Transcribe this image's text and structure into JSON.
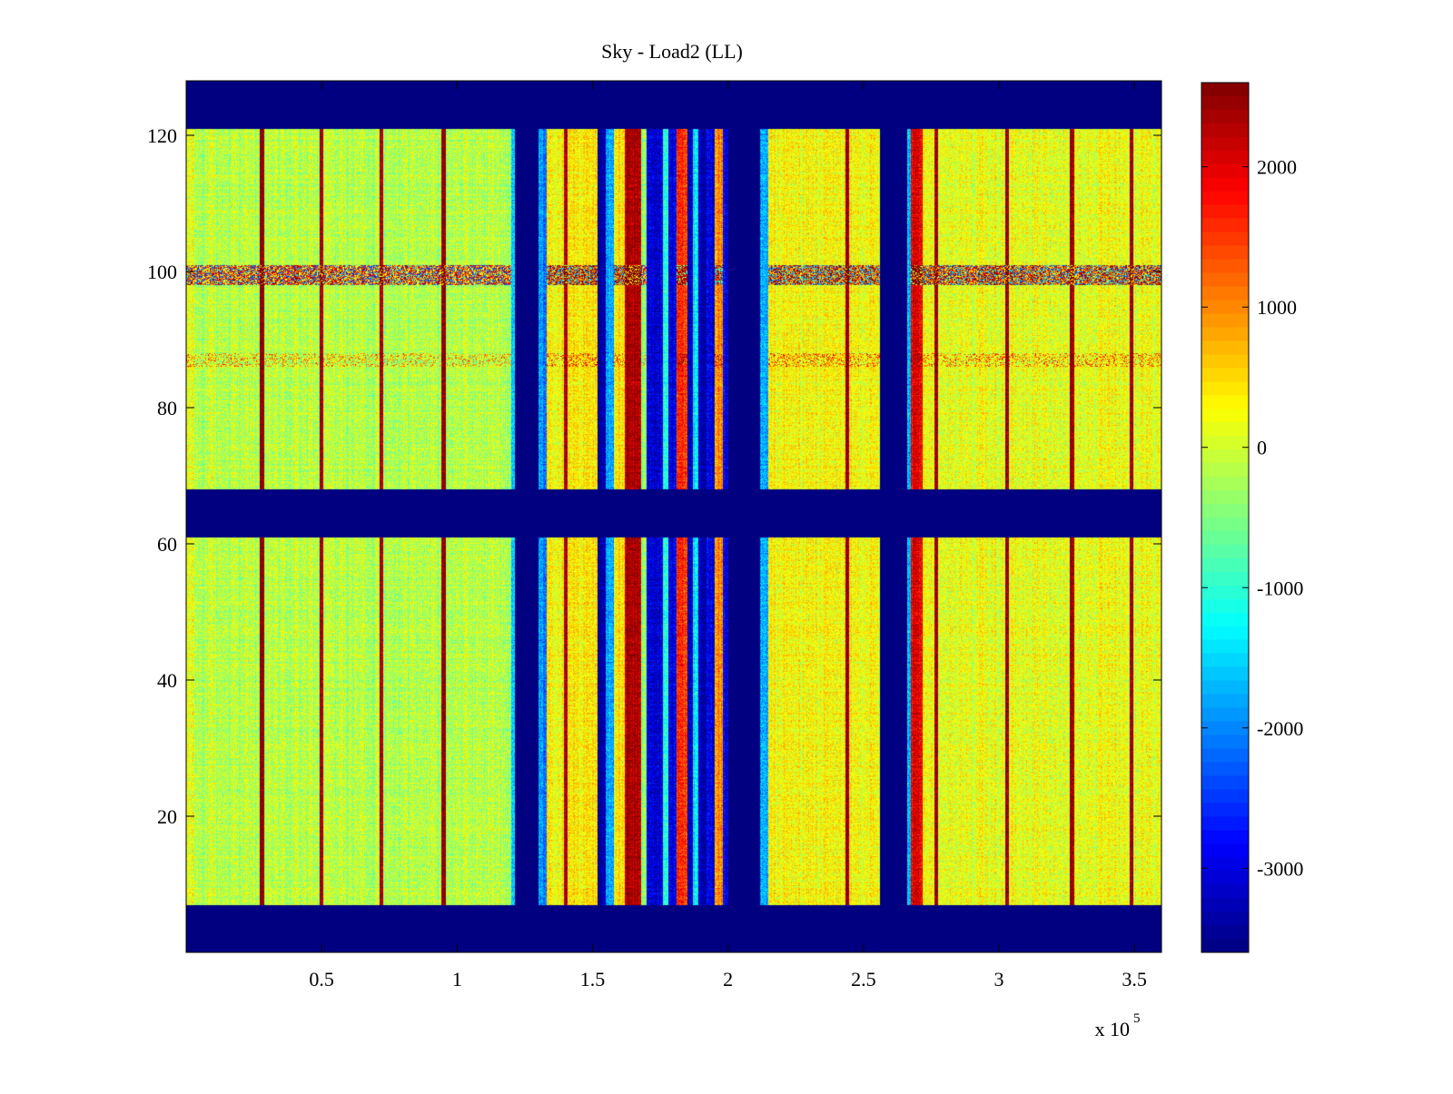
{
  "chart_data": {
    "type": "heatmap",
    "title": "Sky - Load2 (LL)",
    "xlabel": "",
    "ylabel": "",
    "x_exponent_label": "x 10",
    "x_exponent": "5",
    "xlim": [
      0,
      360000
    ],
    "ylim": [
      0,
      128
    ],
    "x_ticks": [
      {
        "value": 50000,
        "label": "0.5"
      },
      {
        "value": 100000,
        "label": "1"
      },
      {
        "value": 150000,
        "label": "1.5"
      },
      {
        "value": 200000,
        "label": "2"
      },
      {
        "value": 250000,
        "label": "2.5"
      },
      {
        "value": 300000,
        "label": "3"
      },
      {
        "value": 350000,
        "label": "3.5"
      }
    ],
    "y_ticks": [
      {
        "value": 20,
        "label": "20"
      },
      {
        "value": 40,
        "label": "40"
      },
      {
        "value": 60,
        "label": "60"
      },
      {
        "value": 80,
        "label": "80"
      },
      {
        "value": 100,
        "label": "100"
      },
      {
        "value": 120,
        "label": "120"
      }
    ],
    "colorbar": {
      "colormap": "jet",
      "range": [
        -3600,
        2600
      ],
      "ticks": [
        {
          "value": 2000,
          "label": "2000"
        },
        {
          "value": 1000,
          "label": "1000"
        },
        {
          "value": 0,
          "label": "0"
        },
        {
          "value": -1000,
          "label": "-1000"
        },
        {
          "value": -2000,
          "label": "-2000"
        },
        {
          "value": -3000,
          "label": "-3000"
        }
      ]
    },
    "masked_row_bands": [
      [
        0,
        7
      ],
      [
        61,
        68
      ],
      [
        121,
        128
      ]
    ],
    "row_features": [
      {
        "range": [
          98,
          101
        ],
        "note": "spiky row band"
      },
      {
        "range": [
          86,
          88
        ],
        "note": "weak row band"
      }
    ],
    "column_bands": [
      {
        "x": [
          0,
          3000
        ],
        "level": 100
      },
      {
        "x": [
          3000,
          120000
        ],
        "level": -150
      },
      {
        "x": [
          120000,
          121500
        ],
        "level": -1500
      },
      {
        "x": [
          121500,
          130000
        ],
        "level": -3600
      },
      {
        "x": [
          130000,
          133000
        ],
        "level": -2000
      },
      {
        "x": [
          133000,
          152000
        ],
        "level": 350
      },
      {
        "x": [
          152000,
          155000
        ],
        "level": -3400
      },
      {
        "x": [
          155000,
          158000
        ],
        "level": -1800
      },
      {
        "x": [
          158000,
          162000
        ],
        "level": 350
      },
      {
        "x": [
          162000,
          168000
        ],
        "level": 2300
      },
      {
        "x": [
          168000,
          170000
        ],
        "level": -400
      },
      {
        "x": [
          170000,
          176000
        ],
        "level": -3100
      },
      {
        "x": [
          176000,
          178000
        ],
        "level": -1000
      },
      {
        "x": [
          178000,
          181000
        ],
        "level": -3000
      },
      {
        "x": [
          181000,
          185000
        ],
        "level": 1600
      },
      {
        "x": [
          185000,
          187000
        ],
        "level": -3200
      },
      {
        "x": [
          187000,
          189000
        ],
        "level": -1500
      },
      {
        "x": [
          189000,
          192000
        ],
        "level": -3400
      },
      {
        "x": [
          192000,
          195000
        ],
        "level": -3000
      },
      {
        "x": [
          195000,
          198000
        ],
        "level": 1000
      },
      {
        "x": [
          198000,
          200000
        ],
        "level": -3000
      },
      {
        "x": [
          200000,
          212000
        ],
        "level": -3600
      },
      {
        "x": [
          212000,
          215000
        ],
        "level": -1800
      },
      {
        "x": [
          215000,
          256000
        ],
        "level": 250
      },
      {
        "x": [
          256000,
          266000
        ],
        "level": -3600
      },
      {
        "x": [
          266000,
          267500
        ],
        "level": -1800
      },
      {
        "x": [
          267500,
          272000
        ],
        "level": 1900
      },
      {
        "x": [
          272000,
          360000
        ],
        "level": 150
      }
    ],
    "column_stripes": [
      28000,
      50000,
      72000,
      95000,
      140000,
      244000,
      277000,
      303000,
      327000,
      349000
    ]
  }
}
